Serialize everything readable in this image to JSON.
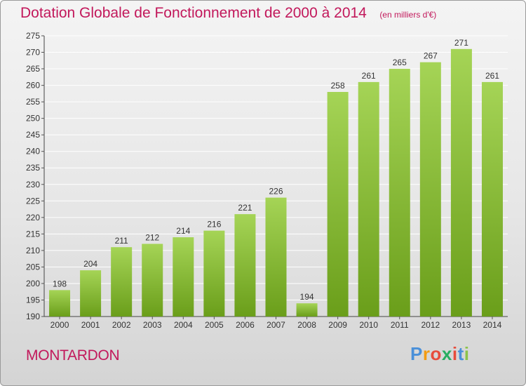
{
  "chart_data": {
    "type": "bar",
    "title": "Dotation Globale de Fonctionnement de 2000 à 2014",
    "subtitle": "(en milliers d'€)",
    "xlabel": "",
    "ylabel": "",
    "categories": [
      "2000",
      "2001",
      "2002",
      "2003",
      "2004",
      "2005",
      "2006",
      "2007",
      "2008",
      "2009",
      "2010",
      "2011",
      "2012",
      "2013",
      "2014"
    ],
    "values": [
      198,
      204,
      211,
      212,
      214,
      216,
      221,
      226,
      194,
      258,
      261,
      265,
      267,
      271,
      261
    ],
    "ylim": [
      190,
      275
    ],
    "yticks": [
      190,
      195,
      200,
      205,
      210,
      215,
      220,
      225,
      230,
      235,
      240,
      245,
      250,
      255,
      260,
      265,
      270,
      275
    ],
    "grid": true,
    "legend": "none"
  },
  "commune": "MONTARDON",
  "logo": {
    "letters": [
      "P",
      "r",
      "o",
      "x",
      "i",
      "t",
      "i"
    ],
    "colors": [
      "#4a90d9",
      "#f39c12",
      "#e74c3c",
      "#27ae60",
      "#e74c3c",
      "#4a90d9",
      "#8bc34a"
    ]
  },
  "colors": {
    "bar_top": "#a5d456",
    "bar_bottom": "#6a9e1a",
    "title": "#c2185b",
    "grid": "#ffffff"
  }
}
